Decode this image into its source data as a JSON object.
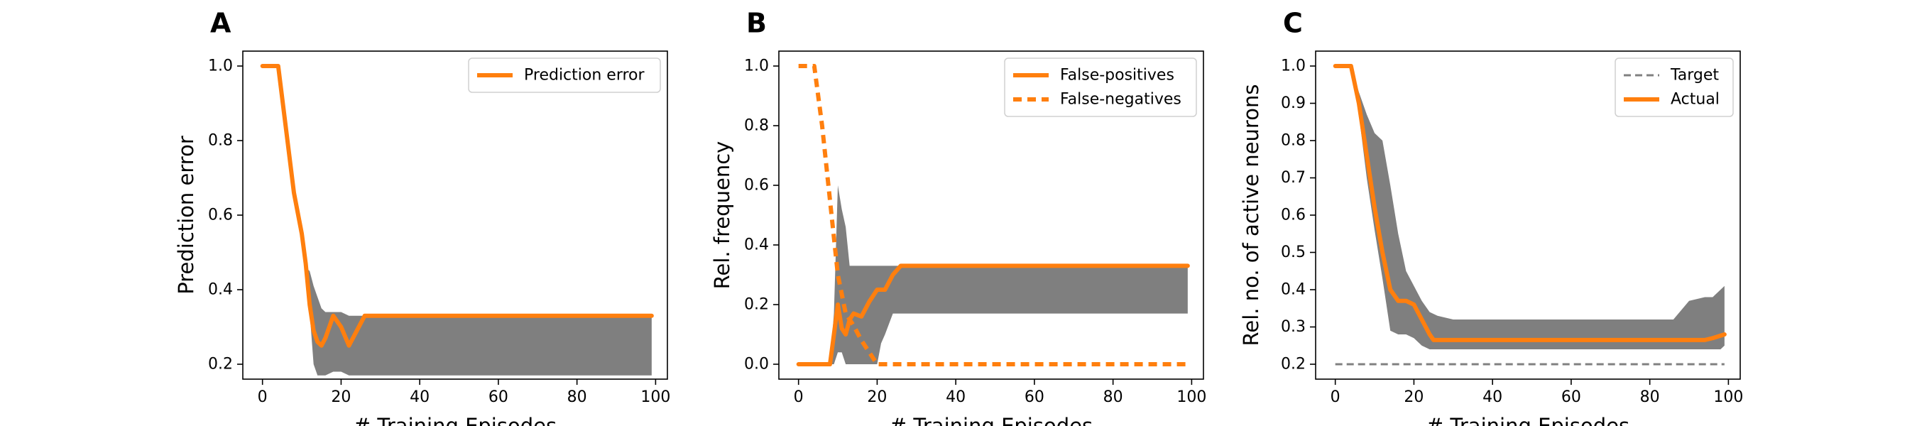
{
  "panels": [
    {
      "letter": "A",
      "chart_data": {
        "type": "line",
        "xlabel": "# Training Episodes",
        "ylabel": "Prediction error",
        "xlim": [
          -5,
          103
        ],
        "ylim": [
          0.16,
          1.04
        ],
        "xticks": [
          0,
          20,
          40,
          60,
          80,
          100
        ],
        "yticks": [
          0.2,
          0.4,
          0.6,
          0.8,
          1.0
        ],
        "xtick_labels": [
          "0",
          "20",
          "40",
          "60",
          "80",
          "100"
        ],
        "ytick_labels": [
          "0.2",
          "0.4",
          "0.6",
          "0.8",
          "1.0"
        ],
        "grid": false,
        "legend_position": "top-right",
        "band": {
          "color": "#7f7f7f",
          "x": [
            0,
            4,
            6,
            8,
            10,
            11,
            12,
            13,
            14,
            15,
            16,
            18,
            20,
            22,
            24,
            26,
            30,
            40,
            60,
            80,
            99
          ],
          "lower": [
            1.0,
            1.0,
            0.83,
            0.66,
            0.54,
            0.46,
            0.34,
            0.2,
            0.17,
            0.17,
            0.17,
            0.18,
            0.18,
            0.17,
            0.17,
            0.17,
            0.17,
            0.17,
            0.17,
            0.17,
            0.17
          ],
          "upper": [
            1.0,
            1.0,
            0.83,
            0.66,
            0.56,
            0.46,
            0.45,
            0.41,
            0.38,
            0.35,
            0.34,
            0.34,
            0.34,
            0.33,
            0.33,
            0.33,
            0.33,
            0.33,
            0.33,
            0.33,
            0.33
          ]
        },
        "series": [
          {
            "name": "Prediction error",
            "color": "#ff7f0e",
            "style": "solid",
            "x": [
              0,
              4,
              6,
              8,
              10,
              11,
              12,
              13,
              14,
              15,
              16,
              18,
              20,
              22,
              24,
              26,
              30,
              40,
              60,
              80,
              99
            ],
            "y": [
              1.0,
              1.0,
              0.83,
              0.66,
              0.55,
              0.47,
              0.36,
              0.29,
              0.26,
              0.25,
              0.27,
              0.33,
              0.3,
              0.25,
              0.29,
              0.33,
              0.33,
              0.33,
              0.33,
              0.33,
              0.33
            ]
          }
        ]
      }
    },
    {
      "letter": "B",
      "chart_data": {
        "type": "line",
        "xlabel": "# Training Episodes",
        "ylabel": "Rel. frequency",
        "xlim": [
          -5,
          103
        ],
        "ylim": [
          -0.05,
          1.05
        ],
        "xticks": [
          0,
          20,
          40,
          60,
          80,
          100
        ],
        "yticks": [
          0.0,
          0.2,
          0.4,
          0.6,
          0.8,
          1.0
        ],
        "xtick_labels": [
          "0",
          "20",
          "40",
          "60",
          "80",
          "100"
        ],
        "ytick_labels": [
          "0.0",
          "0.2",
          "0.4",
          "0.6",
          "0.8",
          "1.0"
        ],
        "grid": false,
        "legend_position": "top-right",
        "band": {
          "color": "#7f7f7f",
          "x": [
            0,
            7,
            8,
            9,
            10,
            11,
            12,
            13,
            14,
            16,
            18,
            20,
            21,
            22,
            24,
            26,
            30,
            40,
            60,
            80,
            99
          ],
          "lower": [
            0,
            0,
            0,
            0,
            0.04,
            0.04,
            0.0,
            0.0,
            0.0,
            0.0,
            0.0,
            0.0,
            0.07,
            0.1,
            0.17,
            0.17,
            0.17,
            0.17,
            0.17,
            0.17,
            0.17
          ],
          "upper": [
            0,
            0,
            0,
            0.17,
            0.6,
            0.52,
            0.46,
            0.33,
            0.33,
            0.33,
            0.33,
            0.33,
            0.33,
            0.33,
            0.33,
            0.33,
            0.33,
            0.33,
            0.33,
            0.33,
            0.33
          ]
        },
        "series": [
          {
            "name": "False-positives",
            "color": "#ff7f0e",
            "style": "solid",
            "x": [
              0,
              7,
              8,
              9,
              10,
              11,
              12,
              13,
              14,
              16,
              18,
              20,
              22,
              24,
              26,
              30,
              40,
              60,
              80,
              99
            ],
            "y": [
              0,
              0,
              0,
              0.1,
              0.2,
              0.12,
              0.1,
              0.15,
              0.17,
              0.16,
              0.21,
              0.25,
              0.25,
              0.3,
              0.33,
              0.33,
              0.33,
              0.33,
              0.33,
              0.33
            ]
          },
          {
            "name": "False-negatives",
            "color": "#ff7f0e",
            "style": "dashed",
            "x": [
              0,
              4,
              6,
              8,
              10,
              12,
              14,
              16,
              18,
              20,
              22,
              30,
              40,
              60,
              80,
              99
            ],
            "y": [
              1.0,
              1.0,
              0.8,
              0.55,
              0.3,
              0.17,
              0.13,
              0.08,
              0.04,
              0.0,
              0.0,
              0.0,
              0.0,
              0.0,
              0.0,
              0.0
            ]
          }
        ]
      }
    },
    {
      "letter": "C",
      "chart_data": {
        "type": "line",
        "xlabel": "# Training Episodes",
        "ylabel": "Rel. no. of active neurons",
        "xlim": [
          -5,
          103
        ],
        "ylim": [
          0.16,
          1.04
        ],
        "xticks": [
          0,
          20,
          40,
          60,
          80,
          100
        ],
        "yticks": [
          0.2,
          0.3,
          0.4,
          0.5,
          0.6,
          0.7,
          0.8,
          0.9,
          1.0
        ],
        "xtick_labels": [
          "0",
          "20",
          "40",
          "60",
          "80",
          "100"
        ],
        "ytick_labels": [
          "0.2",
          "0.3",
          "0.4",
          "0.5",
          "0.6",
          "0.7",
          "0.8",
          "0.9",
          "1.0"
        ],
        "grid": false,
        "legend_position": "top-right",
        "band": {
          "color": "#7f7f7f",
          "x": [
            0,
            4,
            6,
            8,
            10,
            12,
            14,
            16,
            18,
            20,
            22,
            24,
            26,
            30,
            40,
            60,
            80,
            86,
            90,
            94,
            96,
            98,
            99
          ],
          "lower": [
            1.0,
            1.0,
            0.87,
            0.7,
            0.56,
            0.43,
            0.29,
            0.28,
            0.28,
            0.27,
            0.25,
            0.24,
            0.24,
            0.24,
            0.24,
            0.24,
            0.24,
            0.24,
            0.24,
            0.24,
            0.24,
            0.24,
            0.25
          ],
          "upper": [
            1.0,
            1.0,
            0.93,
            0.87,
            0.82,
            0.8,
            0.68,
            0.55,
            0.45,
            0.41,
            0.37,
            0.34,
            0.33,
            0.32,
            0.32,
            0.32,
            0.32,
            0.32,
            0.37,
            0.38,
            0.38,
            0.4,
            0.41
          ]
        },
        "series": [
          {
            "name": "Target",
            "color": "#808080",
            "style": "dashed",
            "x": [
              0,
              99
            ],
            "y": [
              0.2,
              0.2
            ]
          },
          {
            "name": "Actual",
            "color": "#ff7f0e",
            "style": "solid",
            "x": [
              0,
              4,
              6,
              8,
              10,
              12,
              14,
              16,
              18,
              20,
              22,
              24,
              25,
              30,
              40,
              60,
              80,
              94,
              96,
              99
            ],
            "y": [
              1.0,
              1.0,
              0.9,
              0.76,
              0.62,
              0.5,
              0.4,
              0.37,
              0.37,
              0.36,
              0.32,
              0.28,
              0.265,
              0.265,
              0.265,
              0.265,
              0.265,
              0.265,
              0.27,
              0.28
            ]
          }
        ]
      }
    }
  ]
}
